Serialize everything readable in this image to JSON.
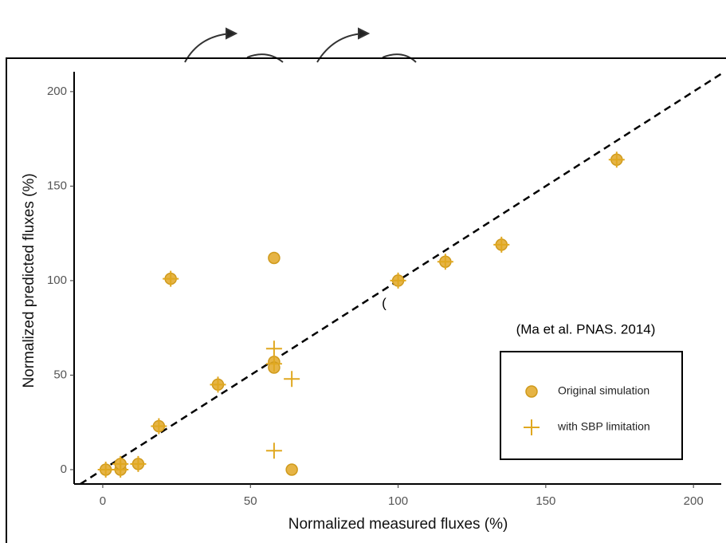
{
  "chart_data": {
    "type": "scatter",
    "xlabel": "Normalized measured fluxes (%)",
    "ylabel": "Normalized predicted fluxes (%)",
    "annotations": [
      "(Ma et al. PNAS.  2014)",
      "("
    ],
    "xlim": [
      -9.7,
      209.4
    ],
    "ylim": [
      -7.6,
      210.5
    ],
    "xticks": [
      0,
      50,
      100,
      150,
      200
    ],
    "yticks": [
      0,
      50,
      100,
      150,
      200
    ],
    "identity_line": true,
    "legend": "lower right",
    "series": [
      {
        "name": "Original simulation",
        "color": "#e6b445",
        "marker": "circle",
        "x": [
          1,
          6,
          6,
          12,
          19,
          23,
          39,
          58,
          58,
          58,
          64,
          100,
          116,
          135,
          174
        ],
        "values": [
          0,
          0,
          3,
          3,
          23,
          101,
          45,
          112,
          57,
          54,
          0,
          100,
          110,
          119,
          164
        ]
      },
      {
        "name": "with SBP limitation",
        "color": "#e0a820",
        "marker": "plus",
        "x": [
          1,
          6,
          6,
          12,
          19,
          23,
          39,
          58,
          58,
          64,
          58,
          100,
          116,
          135,
          174
        ],
        "values": [
          0,
          0,
          3,
          3,
          23,
          101,
          45,
          64,
          56,
          48,
          10,
          100,
          110,
          119,
          164
        ]
      }
    ]
  }
}
